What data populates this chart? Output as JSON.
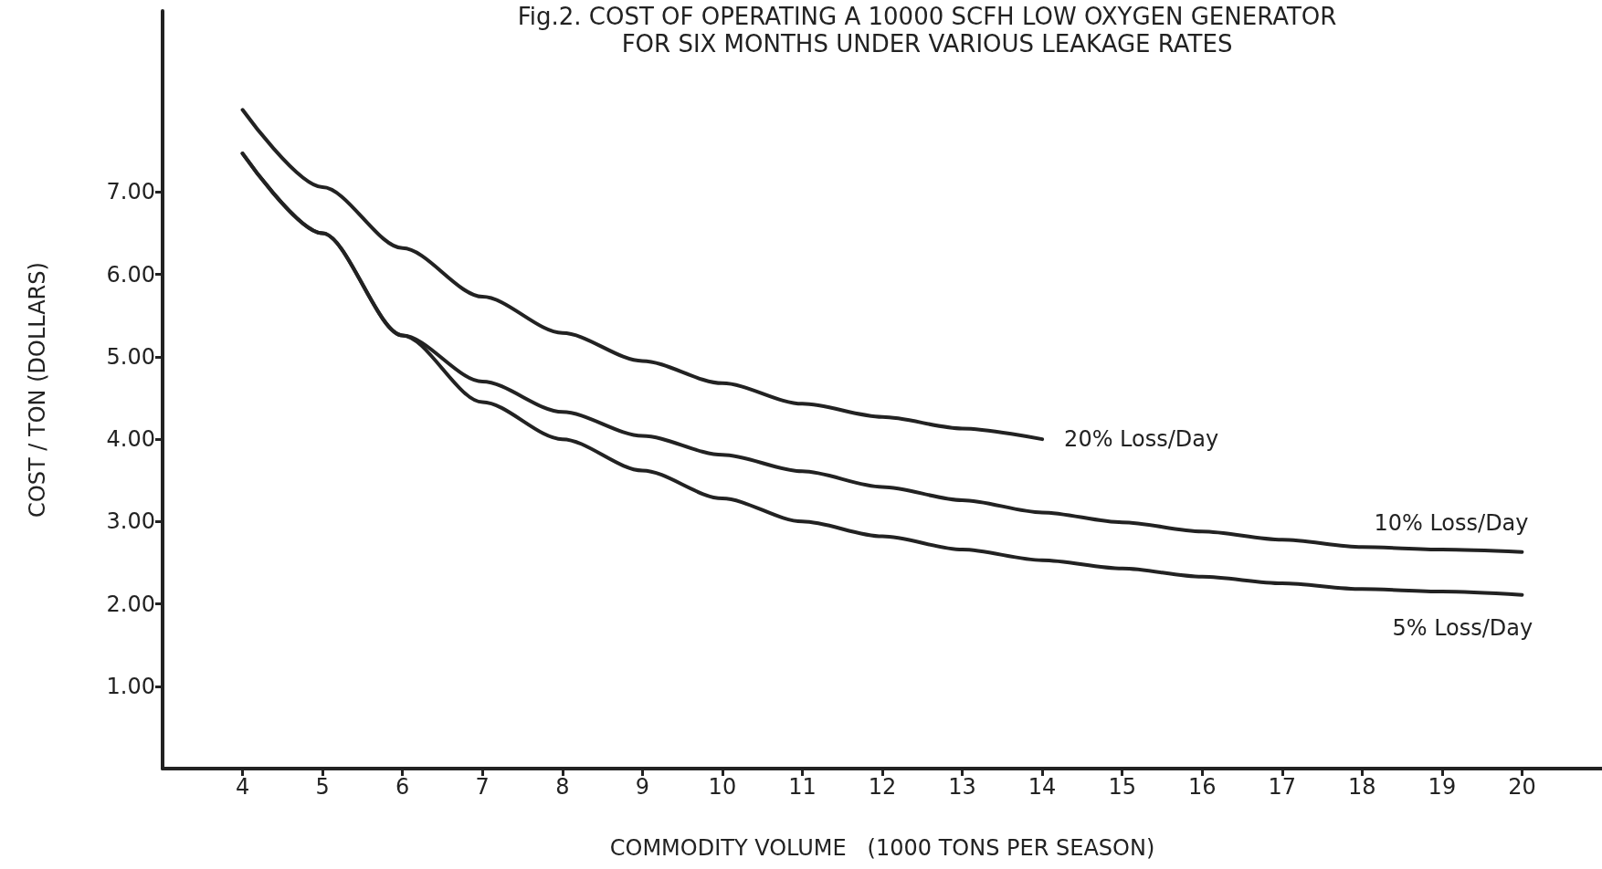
{
  "chart_data": {
    "type": "line",
    "title": "Fig.2. COST OF OPERATING A 10000 SCFH LOW OXYGEN GENERATOR",
    "subtitle": "FOR SIX MONTHS UNDER VARIOUS LEAKAGE RATES",
    "xlabel": "COMMODITY VOLUME   (1000 TONS PER SEASON)",
    "ylabel": "COST / TON (DOLLARS)",
    "series": [
      {
        "name": "20% Loss/Day",
        "color": "#222222",
        "x": [
          4,
          5,
          6,
          7,
          8,
          9,
          10,
          11,
          12,
          13,
          14
        ],
        "values": [
          8.0,
          7.06,
          6.32,
          5.73,
          5.29,
          4.95,
          4.68,
          4.43,
          4.27,
          4.13,
          4.0
        ]
      },
      {
        "name": "10% Loss/Day",
        "color": "#222222",
        "x": [
          4,
          5,
          6,
          7,
          8,
          9,
          10,
          11,
          12,
          13,
          14,
          15,
          16,
          17,
          18,
          19,
          20
        ],
        "values": [
          7.47,
          6.5,
          5.26,
          4.7,
          4.33,
          4.04,
          3.81,
          3.61,
          3.42,
          3.26,
          3.11,
          2.99,
          2.88,
          2.78,
          2.69,
          2.66,
          2.63
        ]
      },
      {
        "name": "5% Loss/Day",
        "color": "#222222",
        "x": [
          4,
          5,
          6,
          7,
          8,
          9,
          10,
          11,
          12,
          13,
          14,
          15,
          16,
          17,
          18,
          19,
          20
        ],
        "values": [
          7.47,
          6.5,
          5.26,
          4.45,
          4.0,
          3.62,
          3.28,
          3.0,
          2.82,
          2.66,
          2.53,
          2.43,
          2.33,
          2.25,
          2.18,
          2.15,
          2.11
        ]
      }
    ],
    "xlim": [
      3,
      21
    ],
    "xticks": [
      4,
      5,
      6,
      7,
      8,
      9,
      10,
      11,
      12,
      13,
      14,
      15,
      16,
      17,
      18,
      19,
      20
    ],
    "ylim": [
      0,
      9.2
    ],
    "yticks": [
      {
        "value": 1,
        "label": "1.00"
      },
      {
        "value": 2,
        "label": "2.00"
      },
      {
        "value": 3,
        "label": "3.00"
      },
      {
        "value": 4,
        "label": "4.00"
      },
      {
        "value": 5,
        "label": "5.00"
      },
      {
        "value": 6,
        "label": "6.00"
      },
      {
        "value": 7,
        "label": "7.00"
      }
    ],
    "grid": false,
    "legend": false,
    "marker": "none",
    "line_style": "solid"
  }
}
